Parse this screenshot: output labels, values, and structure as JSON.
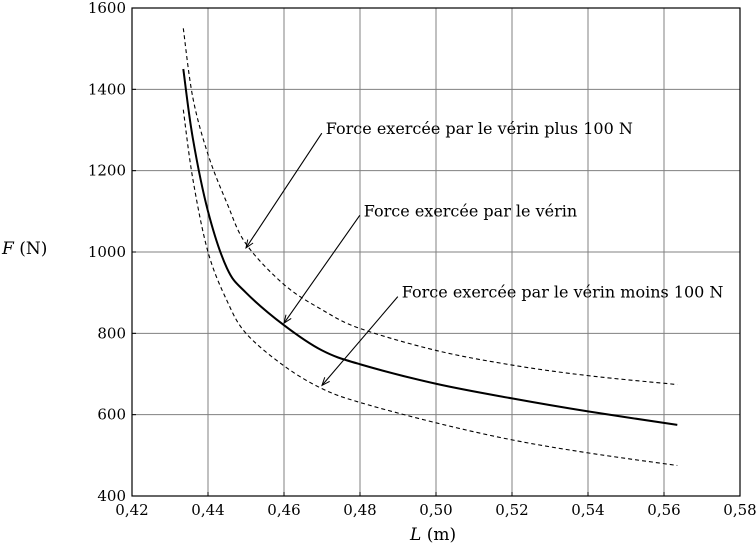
{
  "chart_data": {
    "type": "line",
    "title": "",
    "xlabel_var": "L",
    "xlabel_unit": "(m)",
    "ylabel_var": "F",
    "ylabel_unit": "(N)",
    "xlim": [
      0.42,
      0.58
    ],
    "ylim": [
      400,
      1600
    ],
    "x_ticks": [
      0.42,
      0.44,
      0.46,
      0.48,
      0.5,
      0.52,
      0.54,
      0.56,
      0.58
    ],
    "x_tick_labels": [
      "0,42",
      "0,44",
      "0,46",
      "0,48",
      "0,50",
      "0,52",
      "0,54",
      "0,56",
      "0,58"
    ],
    "y_ticks": [
      400,
      600,
      800,
      1000,
      1200,
      1400,
      1600
    ],
    "y_tick_labels": [
      "400",
      "600",
      "800",
      "1000",
      "1200",
      "1400",
      "1600"
    ],
    "grid": true,
    "x": [
      0.4335,
      0.436,
      0.44,
      0.445,
      0.45,
      0.46,
      0.47,
      0.48,
      0.5,
      0.52,
      0.54,
      0.5635
    ],
    "series": [
      {
        "name": "Force exercée par le vérin plus 100 N",
        "style": "dashed",
        "values": [
          1550,
          1380,
          1240,
          1120,
          1020,
          920,
          858,
          812,
          758,
          722,
          696,
          674
        ]
      },
      {
        "name": "Force exercée par le vérin",
        "style": "solid",
        "values": [
          1450,
          1280,
          1100,
          960,
          900,
          820,
          758,
          724,
          676,
          640,
          608,
          575
        ]
      },
      {
        "name": "Force exercée par le vérin moins 100 N",
        "style": "dashed",
        "values": [
          1350,
          1180,
          1000,
          880,
          800,
          720,
          664,
          630,
          580,
          538,
          506,
          475
        ]
      }
    ],
    "annotations": [
      {
        "text": "Force exercée par le vérin plus 100 N",
        "label_x": 0.471,
        "label_y": 1302,
        "point_x": 0.45,
        "point_y": 1010
      },
      {
        "text": "Force exercée par le vérin",
        "label_x": 0.481,
        "label_y": 1100,
        "point_x": 0.46,
        "point_y": 825
      },
      {
        "text": "Force exercée par le vérin moins 100 N",
        "label_x": 0.491,
        "label_y": 900,
        "point_x": 0.47,
        "point_y": 672
      }
    ]
  }
}
